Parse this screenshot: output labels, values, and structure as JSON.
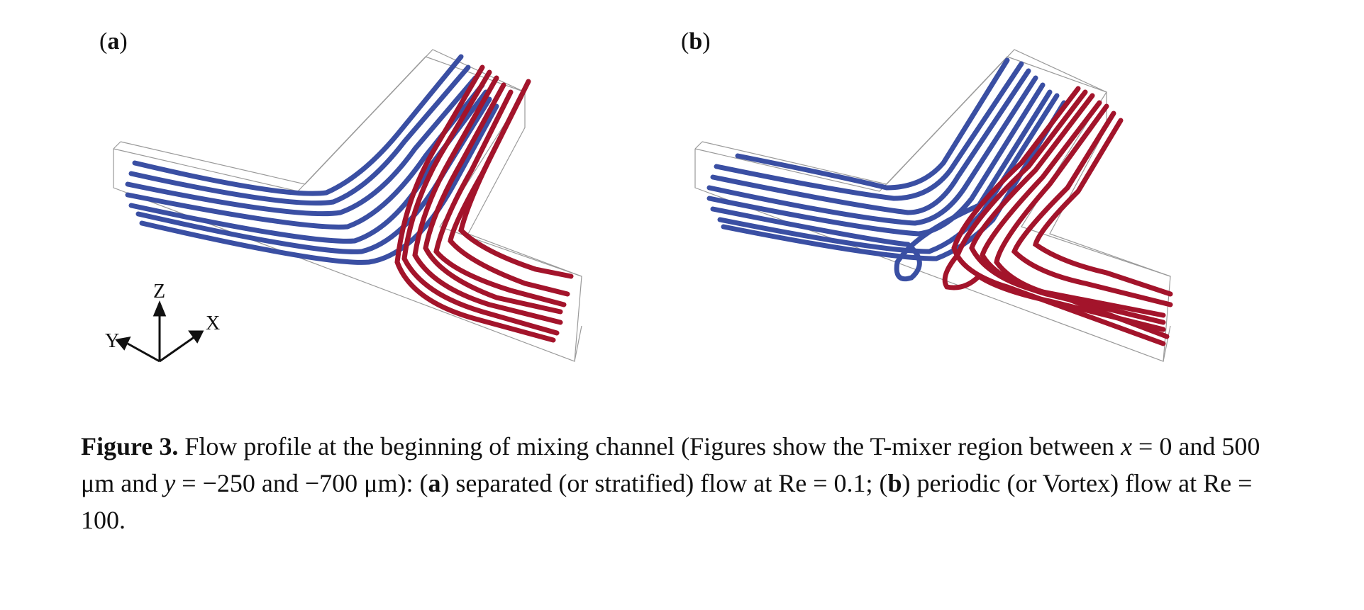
{
  "figure": {
    "panels": [
      {
        "id": "a",
        "label_open": "(",
        "label_letter": "a",
        "label_close": ")"
      },
      {
        "id": "b",
        "label_open": "(",
        "label_letter": "b",
        "label_close": ")"
      }
    ],
    "axes": {
      "z": "Z",
      "x": "X",
      "y": "Y"
    },
    "colors": {
      "blue_stream": "#3a4fa3",
      "red_stream": "#a3142b",
      "channel_outline": "#9a9a9a"
    }
  },
  "caption": {
    "label": "Figure 3.",
    "s1": " Flow profile at the beginning of mixing channel (Figures show the T-mixer region between ",
    "x_var": "x",
    "s2": " = 0 and 500 μm and ",
    "y_var": "y",
    "s3": " = −250 and −700 μm): (",
    "a_ref": "a",
    "s4": ") separated (or stratified) flow at Re = 0.1; (",
    "b_ref": "b",
    "s5": ") periodic (or Vortex) flow at Re = 100."
  }
}
